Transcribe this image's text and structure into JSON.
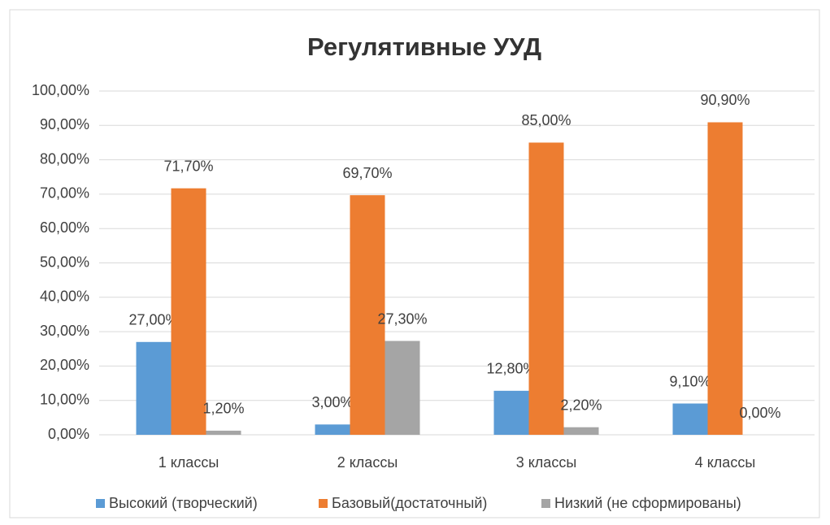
{
  "chart_data": {
    "type": "bar",
    "title": "Регулятивные УУД",
    "categories": [
      "1 классы",
      "2 классы",
      "3 классы",
      "4 классы"
    ],
    "series": [
      {
        "name": "Высокий (творческий)",
        "color": "#5b9bd5",
        "values": [
          27.0,
          3.0,
          12.8,
          9.1
        ],
        "value_labels": [
          "27,00%",
          "3,00%",
          "12,80%",
          "9,10%"
        ]
      },
      {
        "name": "Базовый(достаточный)",
        "color": "#ed7d31",
        "values": [
          71.7,
          69.7,
          85.0,
          90.9
        ],
        "value_labels": [
          "71,70%",
          "69,70%",
          "85,00%",
          "90,90%"
        ]
      },
      {
        "name": "Низкий (не сформированы)",
        "color": "#a5a5a5",
        "values": [
          1.2,
          27.3,
          2.2,
          0.0
        ],
        "value_labels": [
          "1,20%",
          "27,30%",
          "2,20%",
          "0,00%"
        ]
      }
    ],
    "ylim": [
      0,
      100
    ],
    "yticks": [
      {
        "value": 0,
        "label": "0,00%"
      },
      {
        "value": 10,
        "label": "10,00%"
      },
      {
        "value": 20,
        "label": "20,00%"
      },
      {
        "value": 30,
        "label": "30,00%"
      },
      {
        "value": 40,
        "label": "40,00%"
      },
      {
        "value": 50,
        "label": "50,00%"
      },
      {
        "value": 60,
        "label": "60,00%"
      },
      {
        "value": 70,
        "label": "70,00%"
      },
      {
        "value": 80,
        "label": "80,00%"
      },
      {
        "value": 90,
        "label": "90,00%"
      },
      {
        "value": 100,
        "label": "100,00%"
      }
    ],
    "grid": true,
    "legend": "bottom"
  }
}
